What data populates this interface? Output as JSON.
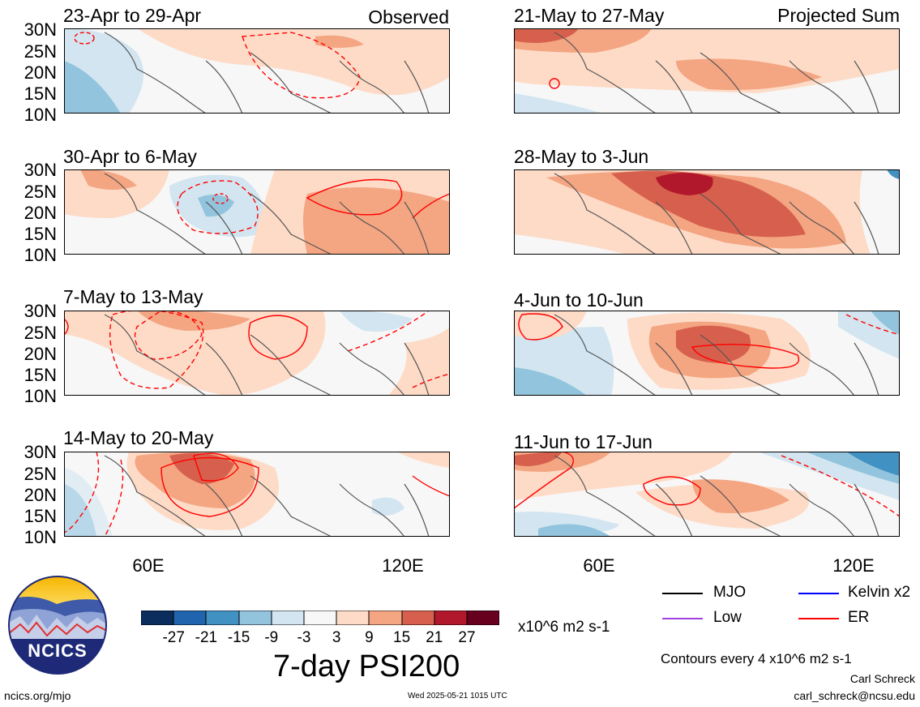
{
  "panels": [
    {
      "title": "23-Apr to 29-Apr",
      "corner": "Observed"
    },
    {
      "title": "21-May to 27-May",
      "corner": "Projected Sum"
    },
    {
      "title": "30-Apr to 6-May",
      "corner": ""
    },
    {
      "title": "28-May to 3-Jun",
      "corner": ""
    },
    {
      "title": "7-May to 13-May",
      "corner": ""
    },
    {
      "title": "4-Jun to 10-Jun",
      "corner": ""
    },
    {
      "title": "14-May to 20-May",
      "corner": ""
    },
    {
      "title": "11-Jun to 17-Jun",
      "corner": ""
    }
  ],
  "axes": {
    "y_ticks": [
      "30N",
      "25N",
      "20N",
      "15N",
      "10N"
    ],
    "x_ticks": [
      "60E",
      "120E"
    ]
  },
  "colorbar": {
    "labels": [
      "-27",
      "-21",
      "-15",
      "-9",
      "-3",
      "3",
      "9",
      "15",
      "21",
      "27"
    ],
    "units": "x10^6 m2 s-1",
    "colors": [
      "#0b2d5e",
      "#1f64ac",
      "#4291c3",
      "#92c4de",
      "#d2e5f0",
      "#f7f7f7",
      "#fddbc7",
      "#f4a582",
      "#d6604d",
      "#b2182b",
      "#67001f"
    ]
  },
  "main_title": "7-day PSI200",
  "legend": {
    "items": [
      {
        "label": "MJO",
        "color": "#000000"
      },
      {
        "label": "Kelvin x2",
        "color": "#0000ff"
      },
      {
        "label": "Low",
        "color": "#a040e0"
      },
      {
        "label": "ER",
        "color": "#ff0000"
      }
    ],
    "contour_note": "Contours every 4 x10^6 m2 s-1"
  },
  "logo": {
    "text": "NCICS"
  },
  "footer": {
    "url": "ncics.org/mjo",
    "timestamp": "Wed 2025-05-21 1015 UTC",
    "author": "Carl Schreck",
    "email": "carl_schreck@ncsu.edu"
  }
}
